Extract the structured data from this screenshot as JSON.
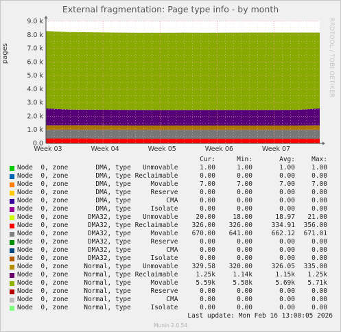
{
  "title": "External fragmentation: Page type info - by month",
  "watermark": "RRDTOOL / TOBI OETIKER",
  "ylabel": "pages",
  "chart_data": {
    "type": "area",
    "stacked": true,
    "title": "External fragmentation: Page type info - by month",
    "ylabel": "pages",
    "xlabel": "",
    "ylim": [
      0,
      9000
    ],
    "yticks": [
      0,
      1000,
      2000,
      3000,
      4000,
      5000,
      6000,
      7000,
      8000,
      9000
    ],
    "ytick_labels": [
      "0.0",
      "1.0 k",
      "2.0 k",
      "3.0 k",
      "4.0 k",
      "5.0 k",
      "6.0 k",
      "7.0 k",
      "8.0 k",
      "9.0 k"
    ],
    "xtick_labels": [
      "Week 03",
      "Week 04",
      "Week 05",
      "Week 06",
      "Week 07"
    ],
    "grid": true,
    "series": [
      {
        "name": "DMA32 Reclaimable",
        "color": "#ff0000",
        "values": [
          356,
          356,
          350,
          330,
          326,
          326,
          326,
          326,
          326,
          326,
          326,
          326,
          326
        ]
      },
      {
        "name": "DMA32 Movable",
        "color": "#777777",
        "values": [
          641,
          650,
          660,
          671,
          665,
          662,
          660,
          662,
          665,
          662,
          662,
          662,
          670
        ]
      },
      {
        "name": "Normal Unmovable",
        "color": "#aa7700",
        "values": [
          330,
          330,
          325,
          322,
          325,
          326,
          326,
          326,
          326,
          326,
          326,
          326,
          330
        ]
      },
      {
        "name": "Normal Reclaimable",
        "color": "#550077",
        "values": [
          1250,
          1160,
          1150,
          1150,
          1150,
          1140,
          1145,
          1150,
          1150,
          1150,
          1150,
          1160,
          1250
        ]
      },
      {
        "name": "Normal Movable",
        "color": "#88aa00",
        "values": [
          5700,
          5710,
          5700,
          5690,
          5690,
          5700,
          5700,
          5690,
          5690,
          5700,
          5700,
          5690,
          5590
        ]
      }
    ]
  },
  "legend": {
    "headers": [
      "Cur:",
      "Min:",
      "Avg:",
      "Max:"
    ],
    "rows": [
      {
        "label": "Node  0, zone       DMA, type   Unmovable",
        "color": "#00cc00",
        "cur": "1.00",
        "min": "1.00",
        "avg": "1.00",
        "max": "1.00"
      },
      {
        "label": "Node  0, zone       DMA, type Reclaimable",
        "color": "#0066b3",
        "cur": "0.00",
        "min": "0.00",
        "avg": "0.00",
        "max": "0.00"
      },
      {
        "label": "Node  0, zone       DMA, type     Movable",
        "color": "#ff8000",
        "cur": "7.00",
        "min": "7.00",
        "avg": "7.00",
        "max": "7.00"
      },
      {
        "label": "Node  0, zone       DMA, type     Reserve",
        "color": "#ffcc00",
        "cur": "0.00",
        "min": "0.00",
        "avg": "0.00",
        "max": "0.00"
      },
      {
        "label": "Node  0, zone       DMA, type         CMA",
        "color": "#330099",
        "cur": "0.00",
        "min": "0.00",
        "avg": "0.00",
        "max": "0.00"
      },
      {
        "label": "Node  0, zone       DMA, type     Isolate",
        "color": "#990099",
        "cur": "0.00",
        "min": "0.00",
        "avg": "0.00",
        "max": "0.00"
      },
      {
        "label": "Node  0, zone     DMA32, type   Unmovable",
        "color": "#ccff00",
        "cur": "20.00",
        "min": "18.00",
        "avg": "18.97",
        "max": "21.00"
      },
      {
        "label": "Node  0, zone     DMA32, type Reclaimable",
        "color": "#ff0000",
        "cur": "326.00",
        "min": "326.00",
        "avg": "334.91",
        "max": "356.00"
      },
      {
        "label": "Node  0, zone     DMA32, type     Movable",
        "color": "#808080",
        "cur": "670.00",
        "min": "641.00",
        "avg": "662.12",
        "max": "671.01"
      },
      {
        "label": "Node  0, zone     DMA32, type     Reserve",
        "color": "#008f00",
        "cur": "0.00",
        "min": "0.00",
        "avg": "0.00",
        "max": "0.00"
      },
      {
        "label": "Node  0, zone     DMA32, type         CMA",
        "color": "#00487d",
        "cur": "0.00",
        "min": "0.00",
        "avg": "0.00",
        "max": "0.00"
      },
      {
        "label": "Node  0, zone     DMA32, type     Isolate",
        "color": "#b35a00",
        "cur": "0.00",
        "min": "0.00",
        "avg": "0.00",
        "max": "0.00"
      },
      {
        "label": "Node  0, zone    Normal, type   Unmovable",
        "color": "#b38f00",
        "cur": "329.58",
        "min": "320.00",
        "avg": "326.05",
        "max": "335.00"
      },
      {
        "label": "Node  0, zone    Normal, type Reclaimable",
        "color": "#6b006b",
        "cur": "1.25k",
        "min": "1.14k",
        "avg": "1.15k",
        "max": "1.25k"
      },
      {
        "label": "Node  0, zone    Normal, type     Movable",
        "color": "#8fb300",
        "cur": "5.59k",
        "min": "5.58k",
        "avg": "5.69k",
        "max": "5.71k"
      },
      {
        "label": "Node  0, zone    Normal, type     Reserve",
        "color": "#b30000",
        "cur": "0.00",
        "min": "0.00",
        "avg": "0.00",
        "max": "0.00"
      },
      {
        "label": "Node  0, zone    Normal, type         CMA",
        "color": "#bebebe",
        "cur": "0.00",
        "min": "0.00",
        "avg": "0.00",
        "max": "0.00"
      },
      {
        "label": "Node  0, zone    Normal, type     Isolate",
        "color": "#80ff80",
        "cur": "0.00",
        "min": "0.00",
        "avg": "0.00",
        "max": "0.00"
      }
    ]
  },
  "last_update": "Last update: Mon Feb 16 13:00:05 2026",
  "footer": "Munin 2.0.54"
}
